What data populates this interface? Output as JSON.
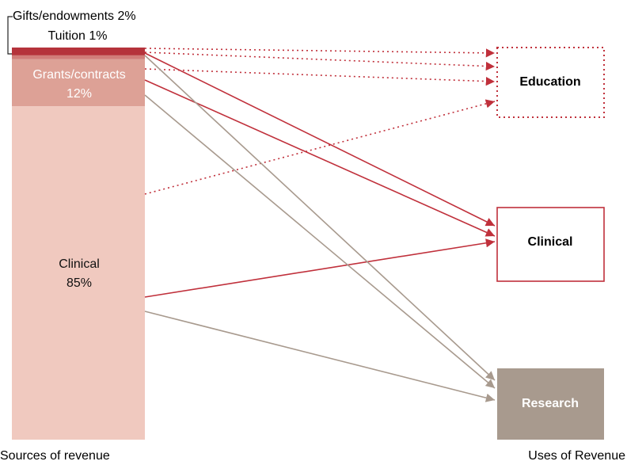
{
  "sources": [
    {
      "name": "Gifts/endowments",
      "value": 2,
      "value_label": "2%",
      "color": "#b5333b"
    },
    {
      "name": "Tuition",
      "value": 1,
      "value_label": "1%",
      "color": "#d17d79"
    },
    {
      "name": "Grants/contracts",
      "value": 12,
      "value_label": "12%",
      "color": "#dda196"
    },
    {
      "name": "Clinical",
      "value": 85,
      "value_label": "85%",
      "color": "#f0c9bf"
    }
  ],
  "uses": [
    {
      "label": "Education"
    },
    {
      "label": "Clinical"
    },
    {
      "label": "Research"
    }
  ],
  "source_axis_label": "Sources of revenue",
  "use_axis_label": "Uses of Revenue"
}
